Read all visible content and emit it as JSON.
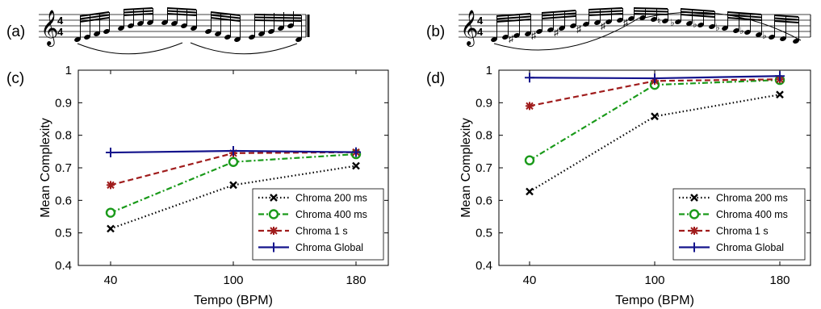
{
  "panel_labels": {
    "a": "(a)",
    "b": "(b)"
  },
  "time_signature": {
    "top": "4",
    "bottom": "4"
  },
  "chart_data": [
    {
      "type": "line",
      "panel": "(c)",
      "xlabel": "Tempo (BPM)",
      "ylabel": "Mean Complexity",
      "categories": [
        "40",
        "100",
        "180"
      ],
      "ylim": [
        0.4,
        1.0
      ],
      "yticks": [
        "0.4",
        "0.5",
        "0.6",
        "0.7",
        "0.8",
        "0.9",
        "1"
      ],
      "legend_position": "bottom-right",
      "series": [
        {
          "name": "Chroma 200 ms",
          "values": [
            0.513,
            0.647,
            0.706
          ],
          "color": "#000000",
          "dash": "dotted",
          "marker": "x"
        },
        {
          "name": "Chroma 400 ms",
          "values": [
            0.562,
            0.718,
            0.742
          ],
          "color": "#1a9a1a",
          "dash": "dashdot",
          "marker": "circle"
        },
        {
          "name": "Chroma 1 s",
          "values": [
            0.647,
            0.745,
            0.748
          ],
          "color": "#a01c1c",
          "dash": "dashed",
          "marker": "star"
        },
        {
          "name": "Chroma Global",
          "values": [
            0.747,
            0.752,
            0.748
          ],
          "color": "#14148c",
          "dash": "solid",
          "marker": "plus"
        }
      ]
    },
    {
      "type": "line",
      "panel": "(d)",
      "xlabel": "Tempo (BPM)",
      "ylabel": "Mean Complexity",
      "categories": [
        "40",
        "100",
        "180"
      ],
      "ylim": [
        0.4,
        1.0
      ],
      "yticks": [
        "0.4",
        "0.5",
        "0.6",
        "0.7",
        "0.8",
        "0.9",
        "1"
      ],
      "legend_position": "bottom-right",
      "series": [
        {
          "name": "Chroma 200 ms",
          "values": [
            0.627,
            0.858,
            0.925
          ],
          "color": "#000000",
          "dash": "dotted",
          "marker": "x"
        },
        {
          "name": "Chroma 400 ms",
          "values": [
            0.723,
            0.955,
            0.97
          ],
          "color": "#1a9a1a",
          "dash": "dashdot",
          "marker": "circle"
        },
        {
          "name": "Chroma 1 s",
          "values": [
            0.89,
            0.967,
            0.972
          ],
          "color": "#a01c1c",
          "dash": "dashed",
          "marker": "star"
        },
        {
          "name": "Chroma Global",
          "values": [
            0.977,
            0.975,
            0.982
          ],
          "color": "#14148c",
          "dash": "solid",
          "marker": "plus"
        }
      ]
    }
  ]
}
